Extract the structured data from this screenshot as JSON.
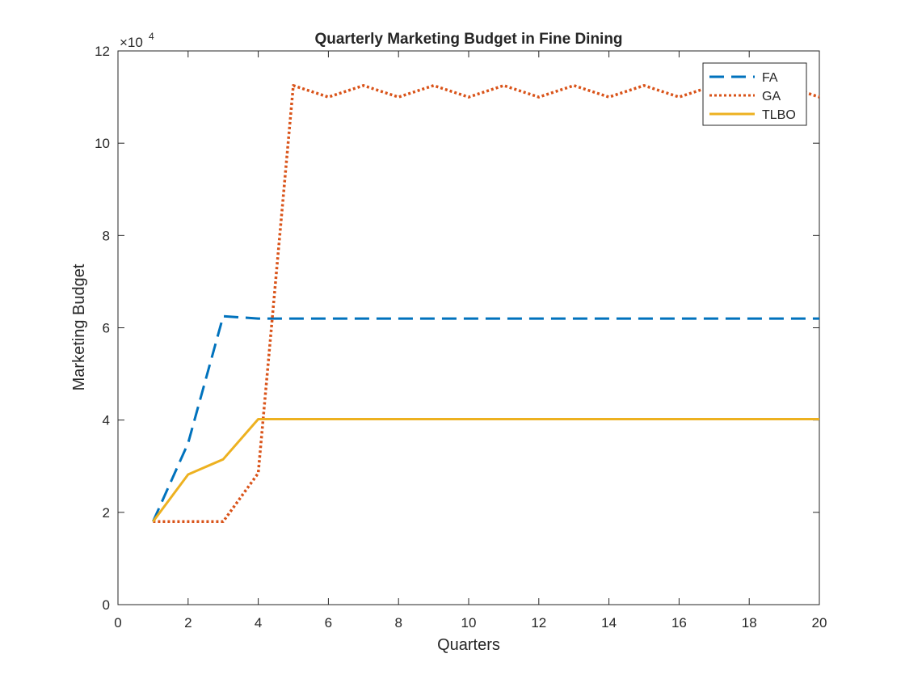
{
  "chart_data": {
    "type": "line",
    "title": "Quarterly Marketing Budget in Fine Dining",
    "xlabel": "Quarters",
    "ylabel": "Marketing Budget",
    "xlim": [
      0,
      20
    ],
    "ylim": [
      0,
      120000
    ],
    "xticks": [
      0,
      2,
      4,
      6,
      8,
      10,
      12,
      14,
      16,
      18,
      20
    ],
    "yticks": [
      0,
      20000,
      40000,
      60000,
      80000,
      100000,
      120000
    ],
    "ytick_labels": [
      "0",
      "2",
      "4",
      "6",
      "8",
      "10",
      "12"
    ],
    "y_exponent_label": "×10",
    "y_exponent_power": "4",
    "grid": false,
    "legend_position": "top-right",
    "x": [
      1,
      2,
      3,
      4,
      5,
      6,
      7,
      8,
      9,
      10,
      11,
      12,
      13,
      14,
      15,
      16,
      17,
      18,
      19,
      20
    ],
    "series": [
      {
        "name": "FA",
        "color": "#0072BD",
        "style": "dashed",
        "values": [
          18000,
          35000,
          62500,
          62000,
          62000,
          62000,
          62000,
          62000,
          62000,
          62000,
          62000,
          62000,
          62000,
          62000,
          62000,
          62000,
          62000,
          62000,
          62000,
          62000
        ]
      },
      {
        "name": "GA",
        "color": "#D95319",
        "style": "dotted",
        "values": [
          18000,
          18000,
          18000,
          28500,
          112500,
          110000,
          112500,
          110000,
          112500,
          110000,
          112500,
          110000,
          112500,
          110000,
          112500,
          110000,
          112500,
          110000,
          112500,
          110000
        ]
      },
      {
        "name": "TLBO",
        "color": "#EDB120",
        "style": "solid",
        "values": [
          18000,
          28200,
          31500,
          40200,
          40200,
          40200,
          40200,
          40200,
          40200,
          40200,
          40200,
          40200,
          40200,
          40200,
          40200,
          40200,
          40200,
          40200,
          40200,
          40200
        ]
      }
    ]
  }
}
